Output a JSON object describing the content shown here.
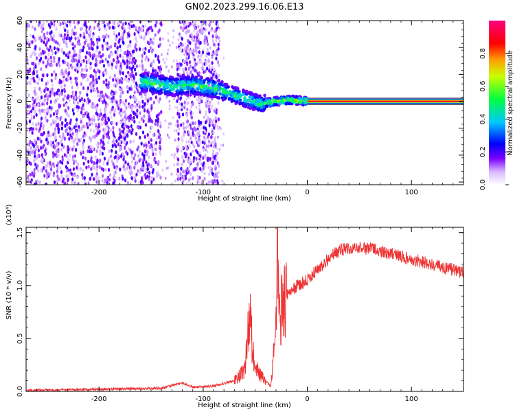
{
  "title": "GN02.2023.299.16.06.E13",
  "chart_data": [
    {
      "type": "heatmap",
      "xlabel": "Height of straight line (km)",
      "ylabel": "Frequency (Hz)",
      "xlim": [
        -270,
        150
      ],
      "ylim": [
        -62,
        60
      ],
      "x_ticks": [
        -200,
        -100,
        0,
        100
      ],
      "y_ticks": [
        -60,
        -40,
        -20,
        0,
        20,
        40,
        60
      ],
      "colorbar": {
        "label": "Normalized spectral amplitude",
        "range": [
          0,
          1
        ],
        "ticks": [
          0.0,
          0.2,
          0.4,
          0.6,
          0.8
        ],
        "colormap": [
          "#ffffff",
          "#e0c8ff",
          "#8a2be2",
          "#0000ff",
          "#00ffff",
          "#00ff00",
          "#ffff00",
          "#ff8000",
          "#ff0000",
          "#ff0080"
        ]
      },
      "features": {
        "noise_regions_x": [
          [
            -270,
            -140
          ],
          [
            -125,
            -85
          ]
        ],
        "band_centerline": [
          [
            -155,
            14
          ],
          [
            -130,
            11
          ],
          [
            -110,
            12
          ],
          [
            -90,
            10
          ],
          [
            -75,
            6
          ],
          [
            -60,
            2
          ],
          [
            -45,
            -2
          ],
          [
            -30,
            0
          ],
          [
            -15,
            1
          ],
          [
            0,
            0
          ],
          [
            150,
            0
          ]
        ],
        "steady_band_from_x": 0,
        "steady_band_halfwidth_hz": 2
      }
    },
    {
      "type": "line",
      "xlabel": "Height of straight line (km)",
      "ylabel": "SNR (10 * v/v)",
      "y_exponent_label": "(x10⁴)",
      "xlim": [
        -270,
        150
      ],
      "ylim": [
        0,
        1.55
      ],
      "x_ticks": [
        -200,
        -100,
        0,
        100
      ],
      "y_ticks": [
        0.0,
        0.5,
        1.0,
        1.5
      ],
      "color": "#ee3333",
      "envelope": [
        [
          -270,
          0.01
        ],
        [
          -200,
          0.02
        ],
        [
          -140,
          0.03
        ],
        [
          -120,
          0.08
        ],
        [
          -110,
          0.04
        ],
        [
          -90,
          0.05
        ],
        [
          -70,
          0.1
        ],
        [
          -60,
          0.2
        ],
        [
          -57,
          0.55
        ],
        [
          -55,
          0.7
        ],
        [
          -52,
          0.35
        ],
        [
          -45,
          0.15
        ],
        [
          -35,
          0.05
        ],
        [
          -30,
          0.6
        ],
        [
          -29,
          1.42
        ],
        [
          -27,
          0.7
        ],
        [
          -20,
          0.9
        ],
        [
          -10,
          1.0
        ],
        [
          0,
          1.05
        ],
        [
          10,
          1.15
        ],
        [
          20,
          1.25
        ],
        [
          30,
          1.33
        ],
        [
          40,
          1.35
        ],
        [
          60,
          1.35
        ],
        [
          80,
          1.3
        ],
        [
          100,
          1.25
        ],
        [
          120,
          1.2
        ],
        [
          140,
          1.15
        ],
        [
          150,
          1.12
        ]
      ]
    }
  ]
}
